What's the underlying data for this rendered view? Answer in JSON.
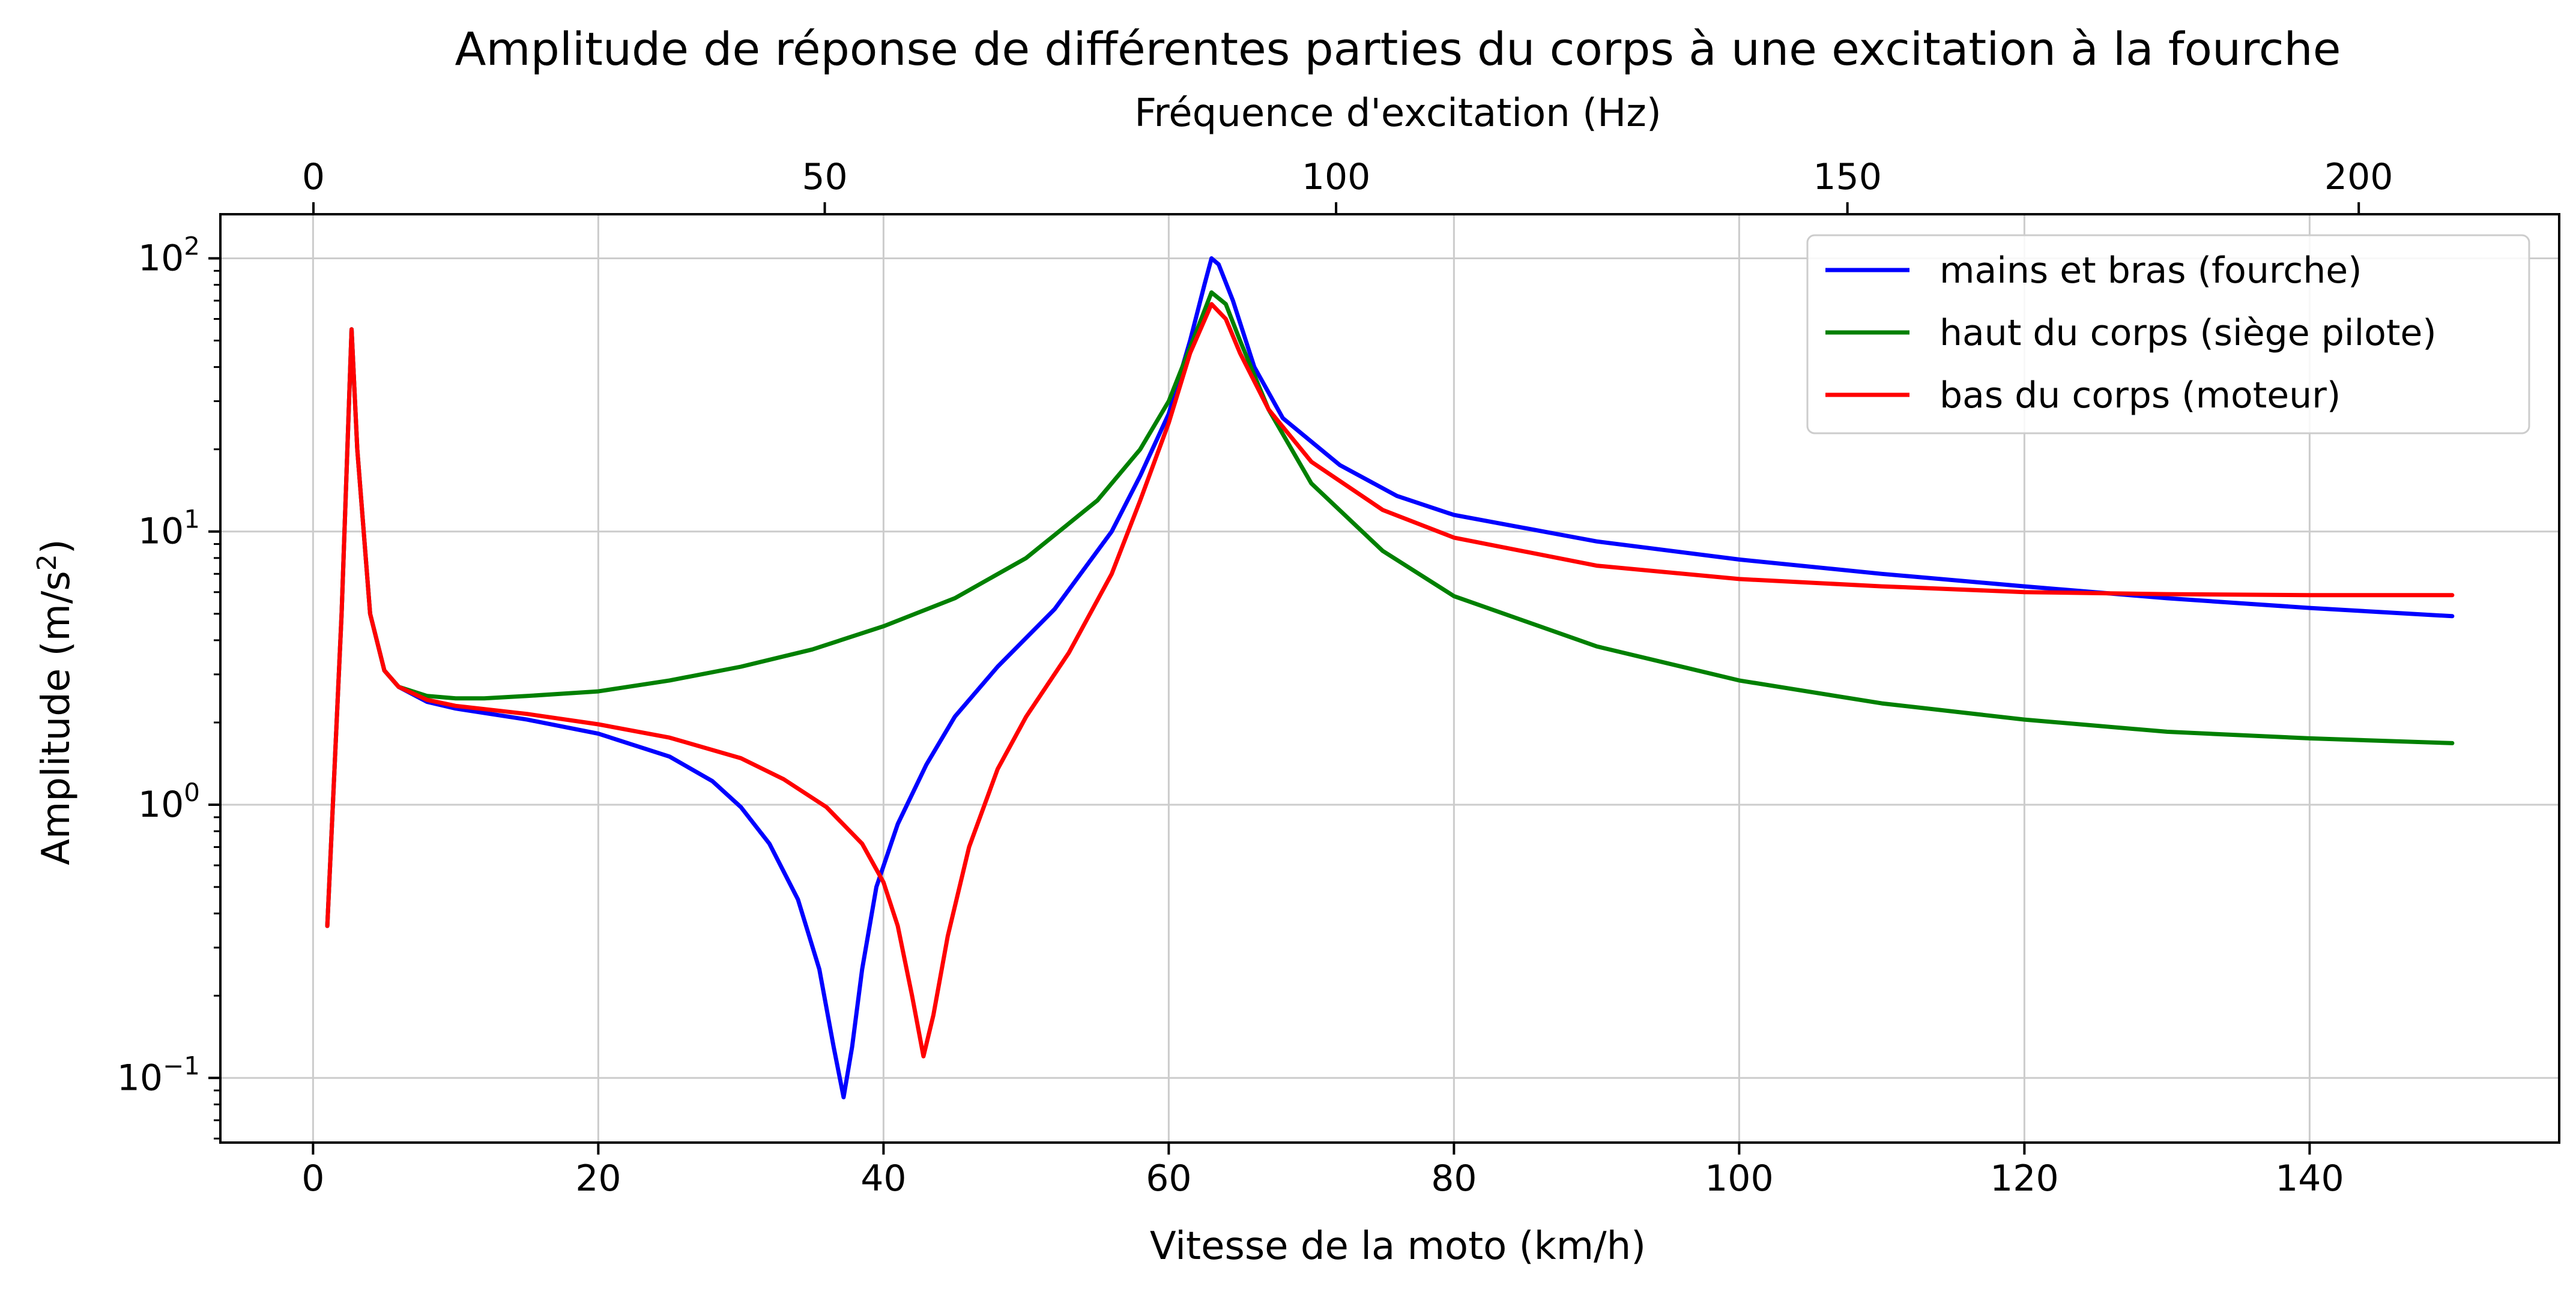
{
  "chart_data": {
    "type": "line",
    "title": "Amplitude de réponse de différentes parties du corps à une excitation à la fourche",
    "xlabel": "Vitesse de la moto (km/h)",
    "x2label": "Fréquence d'excitation (Hz)",
    "ylabel_text": "Amplitude (m/s",
    "ylabel_sup": "2",
    "ylabel_close": ")",
    "yscale": "log",
    "xlim": [
      -6.5,
      157.5
    ],
    "ylim": [
      0.058,
      145
    ],
    "x2lim": [
      -9.1,
      219.6
    ],
    "grid": true,
    "legend_position": "top-right",
    "x_ticks": [
      0,
      20,
      40,
      60,
      80,
      100,
      120,
      140
    ],
    "x_tick_labels": [
      "0",
      "20",
      "40",
      "60",
      "80",
      "100",
      "120",
      "140"
    ],
    "x2_ticks": [
      0,
      50,
      100,
      150,
      200
    ],
    "x2_tick_labels": [
      "0",
      "50",
      "100",
      "150",
      "200"
    ],
    "y_ticks": [
      0.1,
      1,
      10,
      100
    ],
    "y_tick_bases": [
      "10",
      "10",
      "10",
      "10"
    ],
    "y_tick_exps": [
      "−1",
      "0",
      "1",
      "2"
    ],
    "series": [
      {
        "name": "mains et bras (fourche)",
        "color": "#0000ff",
        "points": [
          [
            1,
            0.36
          ],
          [
            2,
            5
          ],
          [
            2.7,
            55
          ],
          [
            3.1,
            20
          ],
          [
            4,
            5
          ],
          [
            5,
            3.1
          ],
          [
            6,
            2.7
          ],
          [
            8,
            2.38
          ],
          [
            10,
            2.25
          ],
          [
            15,
            2.05
          ],
          [
            20,
            1.82
          ],
          [
            25,
            1.5
          ],
          [
            28,
            1.22
          ],
          [
            30,
            0.98
          ],
          [
            32,
            0.72
          ],
          [
            34,
            0.45
          ],
          [
            35.5,
            0.25
          ],
          [
            36.5,
            0.13
          ],
          [
            37.2,
            0.085
          ],
          [
            37.8,
            0.13
          ],
          [
            38.5,
            0.25
          ],
          [
            39.5,
            0.5
          ],
          [
            41,
            0.85
          ],
          [
            43,
            1.4
          ],
          [
            45,
            2.1
          ],
          [
            48,
            3.2
          ],
          [
            52,
            5.2
          ],
          [
            56,
            10
          ],
          [
            58,
            16
          ],
          [
            60,
            27
          ],
          [
            61.5,
            50
          ],
          [
            62.5,
            80
          ],
          [
            63,
            100
          ],
          [
            63.5,
            95
          ],
          [
            64.5,
            70
          ],
          [
            66,
            40
          ],
          [
            68,
            26
          ],
          [
            72,
            17.5
          ],
          [
            76,
            13.5
          ],
          [
            80,
            11.5
          ],
          [
            90,
            9.2
          ],
          [
            100,
            7.9
          ],
          [
            110,
            7
          ],
          [
            120,
            6.3
          ],
          [
            130,
            5.7
          ],
          [
            140,
            5.25
          ],
          [
            150,
            4.9
          ]
        ]
      },
      {
        "name": "haut du corps (siège pilote)",
        "color": "#008000",
        "points": [
          [
            1,
            0.36
          ],
          [
            2,
            5
          ],
          [
            2.7,
            55
          ],
          [
            3.1,
            20
          ],
          [
            4,
            5
          ],
          [
            5,
            3.1
          ],
          [
            6,
            2.7
          ],
          [
            8,
            2.5
          ],
          [
            10,
            2.45
          ],
          [
            12,
            2.45
          ],
          [
            15,
            2.5
          ],
          [
            20,
            2.6
          ],
          [
            25,
            2.85
          ],
          [
            30,
            3.2
          ],
          [
            35,
            3.7
          ],
          [
            40,
            4.5
          ],
          [
            45,
            5.7
          ],
          [
            50,
            8
          ],
          [
            55,
            13
          ],
          [
            58,
            20
          ],
          [
            60,
            30
          ],
          [
            62,
            55
          ],
          [
            63,
            75
          ],
          [
            64,
            68
          ],
          [
            65,
            50
          ],
          [
            67,
            28
          ],
          [
            70,
            15
          ],
          [
            75,
            8.5
          ],
          [
            80,
            5.8
          ],
          [
            90,
            3.8
          ],
          [
            100,
            2.85
          ],
          [
            110,
            2.35
          ],
          [
            120,
            2.05
          ],
          [
            130,
            1.85
          ],
          [
            140,
            1.75
          ],
          [
            150,
            1.68
          ]
        ]
      },
      {
        "name": "bas du corps (moteur)",
        "color": "#ff0000",
        "points": [
          [
            1,
            0.36
          ],
          [
            2,
            5
          ],
          [
            2.7,
            55
          ],
          [
            3.1,
            20
          ],
          [
            4,
            5
          ],
          [
            5,
            3.1
          ],
          [
            6,
            2.7
          ],
          [
            8,
            2.42
          ],
          [
            10,
            2.3
          ],
          [
            15,
            2.15
          ],
          [
            20,
            1.97
          ],
          [
            25,
            1.76
          ],
          [
            30,
            1.48
          ],
          [
            33,
            1.24
          ],
          [
            36,
            0.98
          ],
          [
            38.5,
            0.72
          ],
          [
            40,
            0.52
          ],
          [
            41,
            0.36
          ],
          [
            42,
            0.2
          ],
          [
            42.8,
            0.12
          ],
          [
            43.5,
            0.17
          ],
          [
            44.5,
            0.33
          ],
          [
            46,
            0.7
          ],
          [
            48,
            1.35
          ],
          [
            50,
            2.1
          ],
          [
            53,
            3.6
          ],
          [
            56,
            7
          ],
          [
            58,
            13
          ],
          [
            60,
            25
          ],
          [
            61.5,
            45
          ],
          [
            63,
            68
          ],
          [
            64,
            60
          ],
          [
            65,
            45
          ],
          [
            67,
            28
          ],
          [
            70,
            18
          ],
          [
            75,
            12
          ],
          [
            80,
            9.5
          ],
          [
            90,
            7.5
          ],
          [
            100,
            6.7
          ],
          [
            110,
            6.3
          ],
          [
            120,
            6.0
          ],
          [
            130,
            5.9
          ],
          [
            140,
            5.85
          ],
          [
            150,
            5.85
          ]
        ]
      }
    ]
  }
}
